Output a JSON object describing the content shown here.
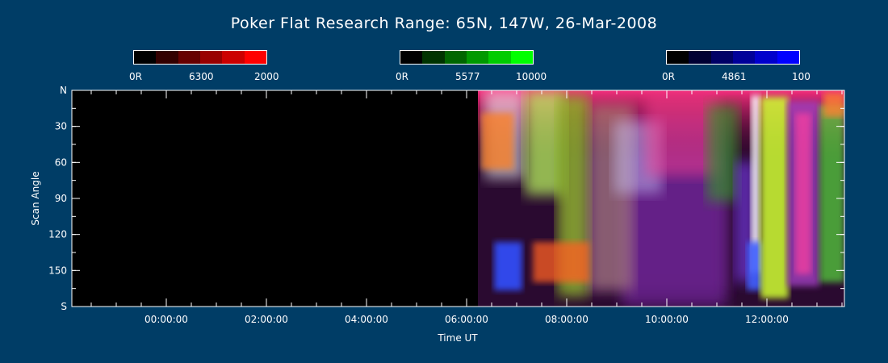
{
  "chart_data": {
    "type": "heatmap",
    "title": "Poker Flat Research Range: 65N, 147W, 26-Mar-2008",
    "xlabel": "Time UT",
    "ylabel": "Scan Angle",
    "x_ticks": [
      "00:00:00",
      "02:00:00",
      "04:00:00",
      "06:00:00",
      "08:00:00",
      "10:00:00",
      "12:00:00"
    ],
    "y_ticks": [
      "N",
      "30",
      "60",
      "90",
      "120",
      "150",
      "S"
    ],
    "colorbars": [
      {
        "name": "6300",
        "min_label": "0R",
        "max_label": "2000",
        "color": "#ff0000",
        "steps": [
          "#000000",
          "#330000",
          "#660000",
          "#990000",
          "#cc0000",
          "#ff0000"
        ]
      },
      {
        "name": "5577",
        "min_label": "0R",
        "max_label": "10000",
        "color": "#00ff00",
        "steps": [
          "#000000",
          "#003300",
          "#006600",
          "#009900",
          "#00cc00",
          "#00ff00"
        ]
      },
      {
        "name": "4861",
        "min_label": "0R",
        "max_label": "100",
        "color": "#0000ff",
        "steps": [
          "#000000",
          "#000033",
          "#000066",
          "#000099",
          "#0000cc",
          "#0000ff"
        ]
      }
    ],
    "background": "#003d66",
    "no_data_color": "#000000",
    "data_start_utc": "06:15:00"
  }
}
